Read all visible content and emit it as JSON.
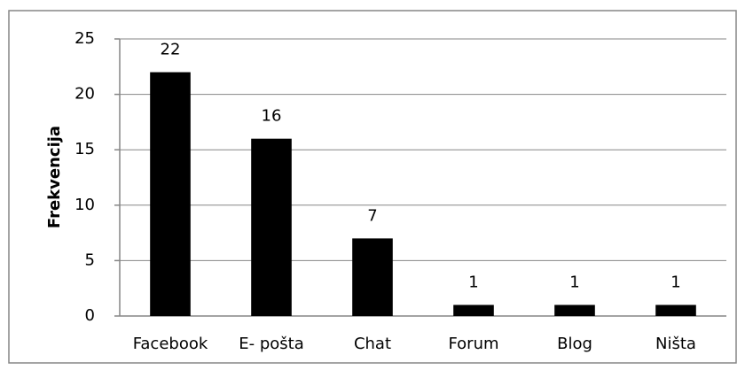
{
  "chart_data": {
    "type": "bar",
    "y_label": "Frekvencija",
    "categories": [
      "Facebook",
      "E- pošta",
      "Chat",
      "Forum",
      "Blog",
      "Ništa"
    ],
    "values": [
      22,
      16,
      7,
      1,
      1,
      1
    ],
    "color": "#000000",
    "ylim": [
      0,
      25
    ],
    "yticks": [
      0,
      5,
      10,
      15,
      20,
      25
    ],
    "grid": true
  }
}
